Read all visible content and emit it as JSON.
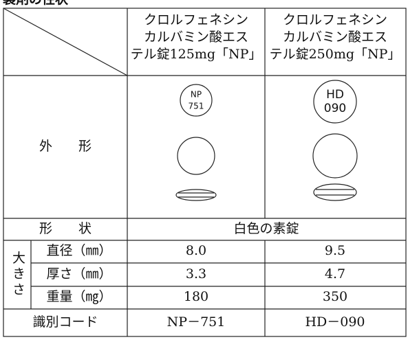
{
  "title": "製剤の性状",
  "table": {
    "header": [
      [
        "クロルフェネシン",
        "カルバミン酸エス",
        "テル錠125mg「NP」"
      ],
      [
        "クロルフェネシン",
        "カルバミン酸エス",
        "テル錠250mg「NP」"
      ]
    ],
    "appearance": {
      "label": "外　　形",
      "imprints": [
        [
          "NP",
          "751"
        ],
        [
          "HD",
          "090"
        ]
      ]
    },
    "shape": {
      "label": "形　　状",
      "value": "白色の素錠"
    },
    "size": {
      "label": "大きさ",
      "rows": [
        [
          "直径（㎜）",
          "8.0",
          "9.5"
        ],
        [
          "厚さ（㎜）",
          "3.3",
          "4.7"
        ],
        [
          "重量（㎎）",
          "180",
          "350"
        ]
      ]
    },
    "code": {
      "label": "識別コード",
      "values": [
        "NP－751",
        "HD－090"
      ]
    }
  }
}
